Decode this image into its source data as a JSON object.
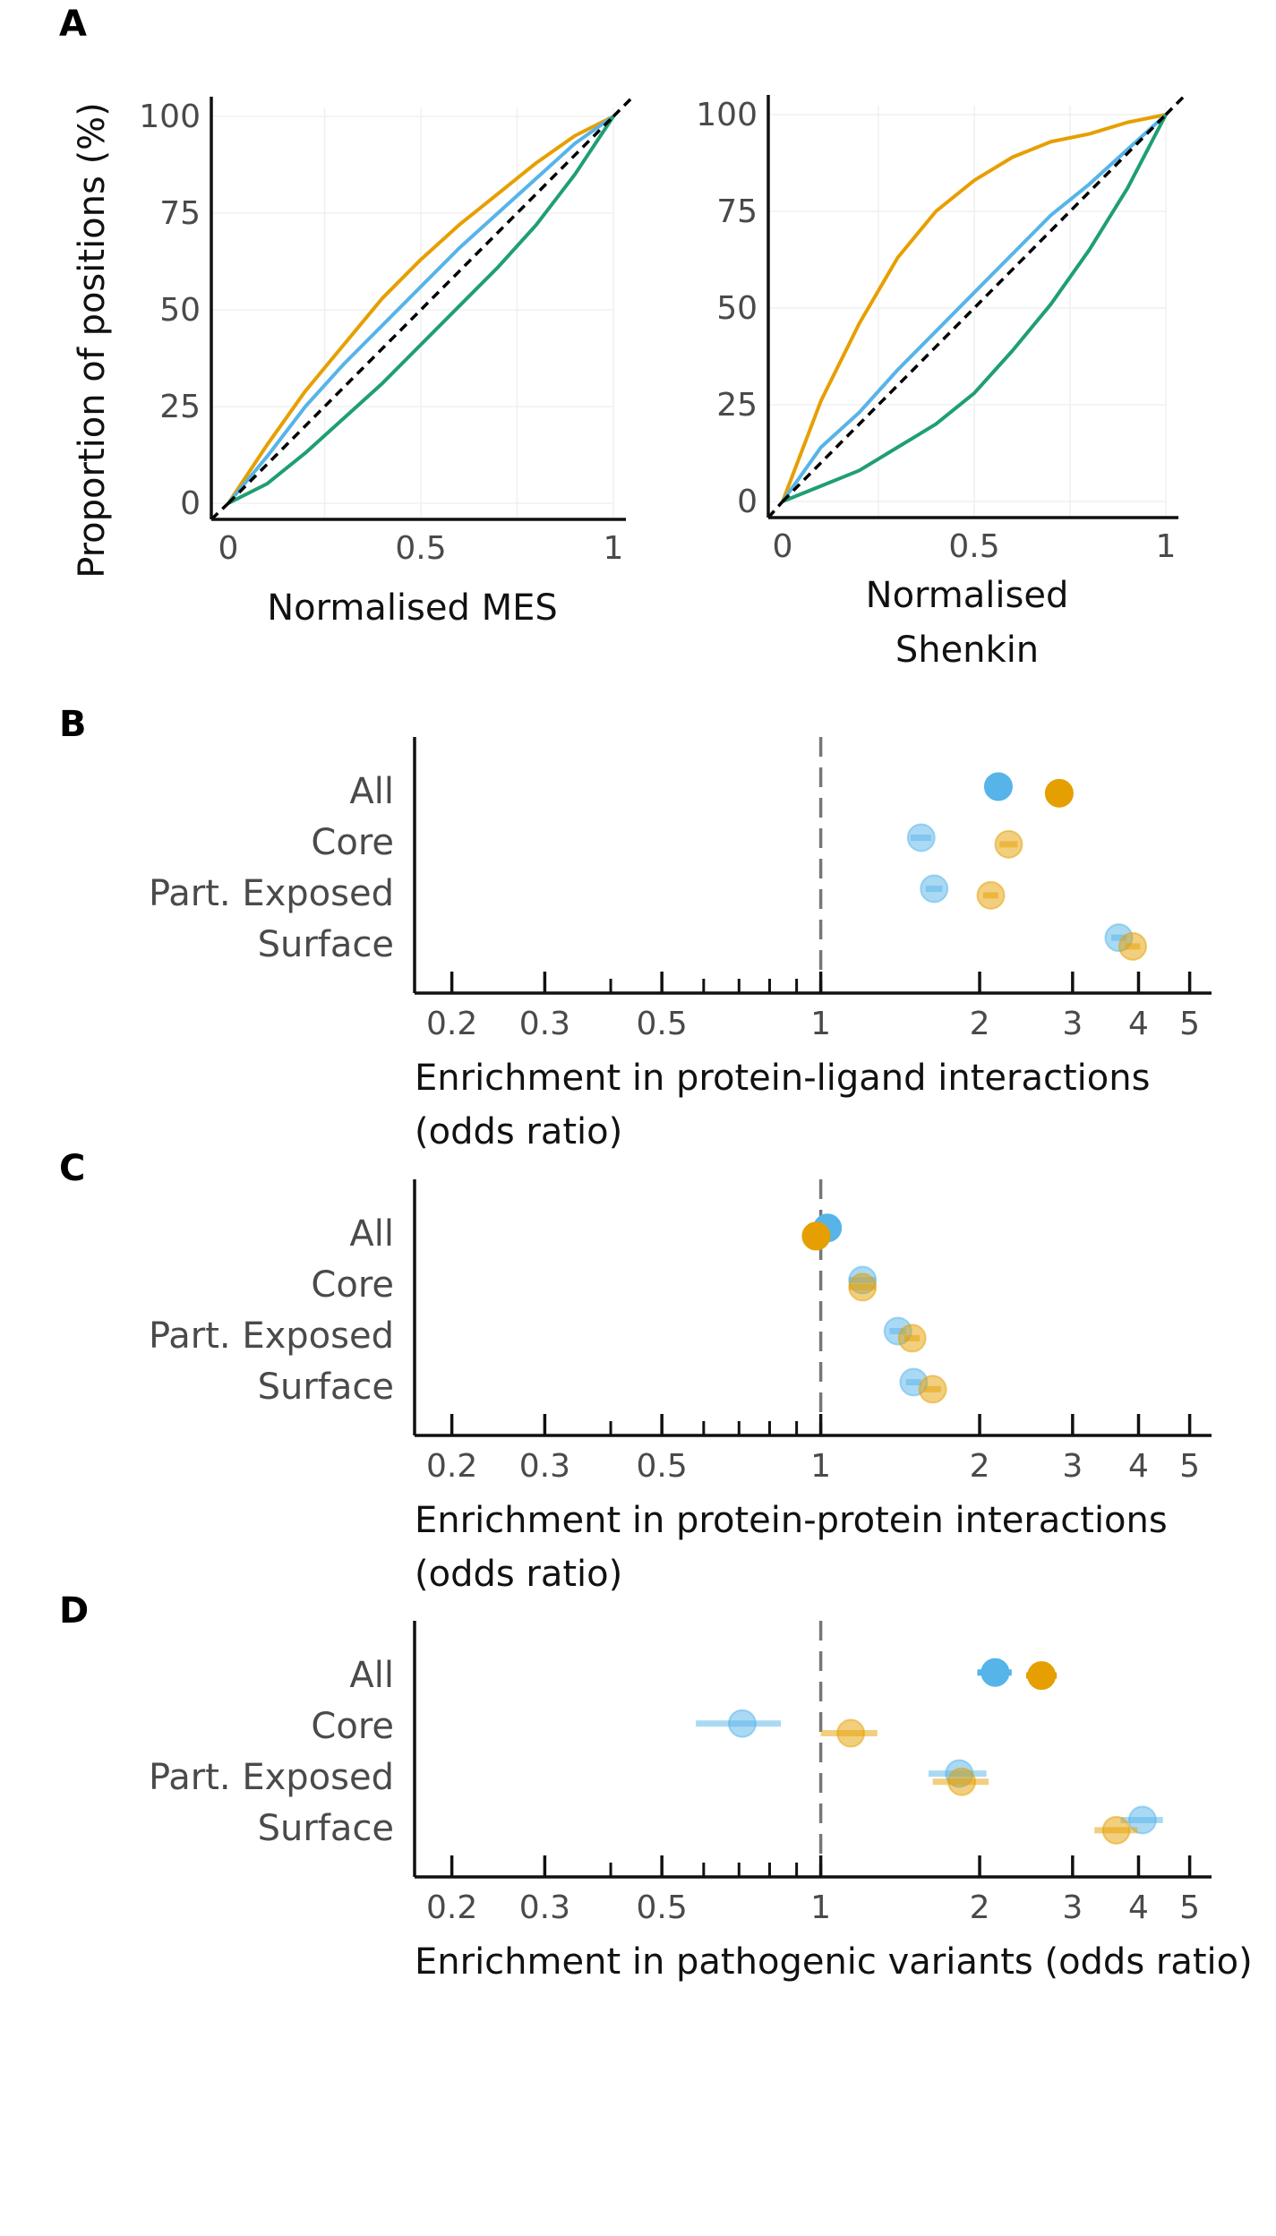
{
  "panel_labels": {
    "a": "A",
    "b": "B",
    "c": "C",
    "d": "D"
  },
  "colors": {
    "orange": "#E69F00",
    "blue": "#56B4E9",
    "green": "#1F9E74",
    "axis": "#111111",
    "ref": "#000000",
    "dash_vertical": "#777777",
    "grid": "#f0f0f0"
  },
  "chart_data": [
    {
      "type": "line",
      "panel": "A-left",
      "ylabel": "Proportion of positions (%)",
      "xlabel": "Normalised MES",
      "xlim": [
        0,
        1
      ],
      "ylim": [
        0,
        100
      ],
      "x_ticks": [
        {
          "v": 0,
          "label": "0"
        },
        {
          "v": 0.5,
          "label": "0.5"
        },
        {
          "v": 1,
          "label": "1"
        }
      ],
      "y_ticks": [
        {
          "v": 0,
          "label": "0"
        },
        {
          "v": 25,
          "label": "25"
        },
        {
          "v": 50,
          "label": "50"
        },
        {
          "v": 75,
          "label": "75"
        },
        {
          "v": 100,
          "label": "100"
        }
      ],
      "x": [
        0,
        0.1,
        0.2,
        0.3,
        0.4,
        0.5,
        0.6,
        0.7,
        0.8,
        0.9,
        1
      ],
      "series": [
        {
          "color": "orange",
          "values": [
            0,
            15,
            29,
            41,
            53,
            63,
            72,
            80,
            88,
            95,
            100
          ]
        },
        {
          "color": "blue",
          "values": [
            0,
            12,
            25,
            36,
            46,
            56,
            66,
            75,
            84,
            93,
            100
          ]
        },
        {
          "color": "green",
          "values": [
            0,
            5,
            13,
            22,
            31,
            41,
            51,
            61,
            72,
            85,
            100
          ]
        },
        {
          "color": "ref",
          "dashed": true,
          "values": [
            0,
            10,
            20,
            30,
            40,
            50,
            60,
            70,
            80,
            90,
            100
          ]
        }
      ],
      "grid": true
    },
    {
      "type": "line",
      "panel": "A-right",
      "xlabel_lines": [
        "Normalised",
        "Shenkin"
      ],
      "xlim": [
        0,
        1
      ],
      "ylim": [
        0,
        100
      ],
      "x_ticks": [
        {
          "v": 0,
          "label": "0"
        },
        {
          "v": 0.5,
          "label": "0.5"
        },
        {
          "v": 1,
          "label": "1"
        }
      ],
      "y_ticks": [
        {
          "v": 0,
          "label": "0"
        },
        {
          "v": 25,
          "label": "25"
        },
        {
          "v": 50,
          "label": "50"
        },
        {
          "v": 75,
          "label": "75"
        },
        {
          "v": 100,
          "label": "100"
        }
      ],
      "x": [
        0,
        0.1,
        0.2,
        0.3,
        0.4,
        0.5,
        0.6,
        0.7,
        0.8,
        0.9,
        1
      ],
      "series": [
        {
          "color": "orange",
          "values": [
            0,
            26,
            46,
            63,
            75,
            83,
            89,
            93,
            95,
            98,
            100
          ]
        },
        {
          "color": "blue",
          "values": [
            0,
            14,
            23,
            34,
            44,
            54,
            64,
            74,
            82,
            91,
            100
          ]
        },
        {
          "color": "green",
          "values": [
            0,
            4,
            8,
            14,
            20,
            28,
            39,
            51,
            65,
            81,
            100
          ]
        },
        {
          "color": "ref",
          "dashed": true,
          "values": [
            0,
            10,
            20,
            30,
            40,
            50,
            60,
            70,
            80,
            90,
            100
          ]
        }
      ],
      "grid": true
    },
    {
      "type": "scatter",
      "panel": "B",
      "xlabel_lines": [
        "Enrichment in protein-ligand interactions",
        "(odds ratio)"
      ],
      "x_scale": "log",
      "xlim": [
        0.17,
        5.5
      ],
      "ref_line": 1,
      "categories": [
        "All",
        "Core",
        "Part. Exposed",
        "Surface"
      ],
      "x_ticks": [
        {
          "v": 0.2,
          "label": "0.2"
        },
        {
          "v": 0.3,
          "label": "0.3"
        },
        {
          "v": 0.5,
          "label": "0.5"
        },
        {
          "v": 1,
          "label": "1"
        },
        {
          "v": 2,
          "label": "2"
        },
        {
          "v": 3,
          "label": "3"
        },
        {
          "v": 4,
          "label": "4"
        },
        {
          "v": 5,
          "label": "5"
        }
      ],
      "minor_ticks": [
        0.4,
        0.6,
        0.7,
        0.8,
        0.9
      ],
      "points": [
        {
          "category": "All",
          "color": "blue",
          "x": 2.17,
          "lo": 2.13,
          "hi": 2.21,
          "faded": false,
          "offset": -0.08
        },
        {
          "category": "All",
          "color": "orange",
          "x": 2.83,
          "lo": 2.78,
          "hi": 2.88,
          "faded": false,
          "offset": 0.05
        },
        {
          "category": "Core",
          "color": "blue",
          "x": 1.55,
          "lo": 1.48,
          "hi": 1.62,
          "faded": true,
          "offset": -0.08
        },
        {
          "category": "Core",
          "color": "orange",
          "x": 2.27,
          "lo": 2.18,
          "hi": 2.36,
          "faded": true,
          "offset": 0.05
        },
        {
          "category": "Part. Exposed",
          "color": "blue",
          "x": 1.64,
          "lo": 1.58,
          "hi": 1.7,
          "faded": true,
          "offset": -0.08
        },
        {
          "category": "Part. Exposed",
          "color": "orange",
          "x": 2.1,
          "lo": 2.03,
          "hi": 2.17,
          "faded": true,
          "offset": 0.05
        },
        {
          "category": "Surface",
          "color": "blue",
          "x": 3.67,
          "lo": 3.55,
          "hi": 3.8,
          "faded": true,
          "offset": -0.12
        },
        {
          "category": "Surface",
          "color": "orange",
          "x": 3.9,
          "lo": 3.77,
          "hi": 4.03,
          "faded": true,
          "offset": 0.05
        }
      ]
    },
    {
      "type": "scatter",
      "panel": "C",
      "xlabel_lines": [
        "Enrichment in protein-protein interactions",
        "(odds ratio)"
      ],
      "x_scale": "log",
      "xlim": [
        0.17,
        5.5
      ],
      "ref_line": 1,
      "categories": [
        "All",
        "Core",
        "Part. Exposed",
        "Surface"
      ],
      "x_ticks": [
        {
          "v": 0.2,
          "label": "0.2"
        },
        {
          "v": 0.3,
          "label": "0.3"
        },
        {
          "v": 0.5,
          "label": "0.5"
        },
        {
          "v": 1,
          "label": "1"
        },
        {
          "v": 2,
          "label": "2"
        },
        {
          "v": 3,
          "label": "3"
        },
        {
          "v": 4,
          "label": "4"
        },
        {
          "v": 5,
          "label": "5"
        }
      ],
      "minor_ticks": [
        0.4,
        0.6,
        0.7,
        0.8,
        0.9
      ],
      "points": [
        {
          "category": "All",
          "color": "blue",
          "x": 1.03,
          "lo": 1.01,
          "hi": 1.05,
          "faded": false,
          "offset": -0.1
        },
        {
          "category": "All",
          "color": "orange",
          "x": 0.98,
          "lo": 0.96,
          "hi": 1.0,
          "faded": false,
          "offset": 0.06
        },
        {
          "category": "Core",
          "color": "blue",
          "x": 1.2,
          "lo": 1.13,
          "hi": 1.27,
          "faded": true,
          "offset": -0.08
        },
        {
          "category": "Core",
          "color": "orange",
          "x": 1.2,
          "lo": 1.13,
          "hi": 1.27,
          "faded": true,
          "offset": 0.06
        },
        {
          "category": "Part. Exposed",
          "color": "blue",
          "x": 1.4,
          "lo": 1.35,
          "hi": 1.45,
          "faded": true,
          "offset": -0.08
        },
        {
          "category": "Part. Exposed",
          "color": "orange",
          "x": 1.49,
          "lo": 1.44,
          "hi": 1.54,
          "faded": true,
          "offset": 0.06
        },
        {
          "category": "Surface",
          "color": "blue",
          "x": 1.5,
          "lo": 1.45,
          "hi": 1.55,
          "faded": true,
          "offset": -0.08
        },
        {
          "category": "Surface",
          "color": "orange",
          "x": 1.63,
          "lo": 1.57,
          "hi": 1.69,
          "faded": true,
          "offset": 0.06
        }
      ]
    },
    {
      "type": "scatter",
      "panel": "D",
      "xlabel_lines": [
        "Enrichment in pathogenic variants (odds ratio)"
      ],
      "x_scale": "log",
      "xlim": [
        0.17,
        5.5
      ],
      "ref_line": 1,
      "categories": [
        "All",
        "Core",
        "Part. Exposed",
        "Surface"
      ],
      "x_ticks": [
        {
          "v": 0.2,
          "label": "0.2"
        },
        {
          "v": 0.3,
          "label": "0.3"
        },
        {
          "v": 0.5,
          "label": "0.5"
        },
        {
          "v": 1,
          "label": "1"
        },
        {
          "v": 2,
          "label": "2"
        },
        {
          "v": 3,
          "label": "3"
        },
        {
          "v": 4,
          "label": "4"
        },
        {
          "v": 5,
          "label": "5"
        }
      ],
      "minor_ticks": [
        0.4,
        0.6,
        0.7,
        0.8,
        0.9
      ],
      "points": [
        {
          "category": "All",
          "color": "blue",
          "x": 2.14,
          "lo": 1.98,
          "hi": 2.3,
          "faded": false,
          "offset": -0.04
        },
        {
          "category": "All",
          "color": "orange",
          "x": 2.62,
          "lo": 2.45,
          "hi": 2.8,
          "faded": false,
          "offset": 0.02
        },
        {
          "category": "Core",
          "color": "blue",
          "x": 0.71,
          "lo": 0.58,
          "hi": 0.84,
          "faded": true,
          "offset": -0.04
        },
        {
          "category": "Core",
          "color": "orange",
          "x": 1.14,
          "lo": 1.0,
          "hi": 1.28,
          "faded": true,
          "offset": 0.15
        },
        {
          "category": "Part. Exposed",
          "color": "blue",
          "x": 1.83,
          "lo": 1.6,
          "hi": 2.06,
          "faded": true,
          "offset": -0.06
        },
        {
          "category": "Part. Exposed",
          "color": "orange",
          "x": 1.85,
          "lo": 1.63,
          "hi": 2.08,
          "faded": true,
          "offset": 0.1
        },
        {
          "category": "Surface",
          "color": "blue",
          "x": 4.07,
          "lo": 3.7,
          "hi": 4.45,
          "faded": true,
          "offset": -0.15
        },
        {
          "category": "Surface",
          "color": "orange",
          "x": 3.63,
          "lo": 3.3,
          "hi": 3.98,
          "faded": true,
          "offset": 0.05
        }
      ]
    }
  ]
}
